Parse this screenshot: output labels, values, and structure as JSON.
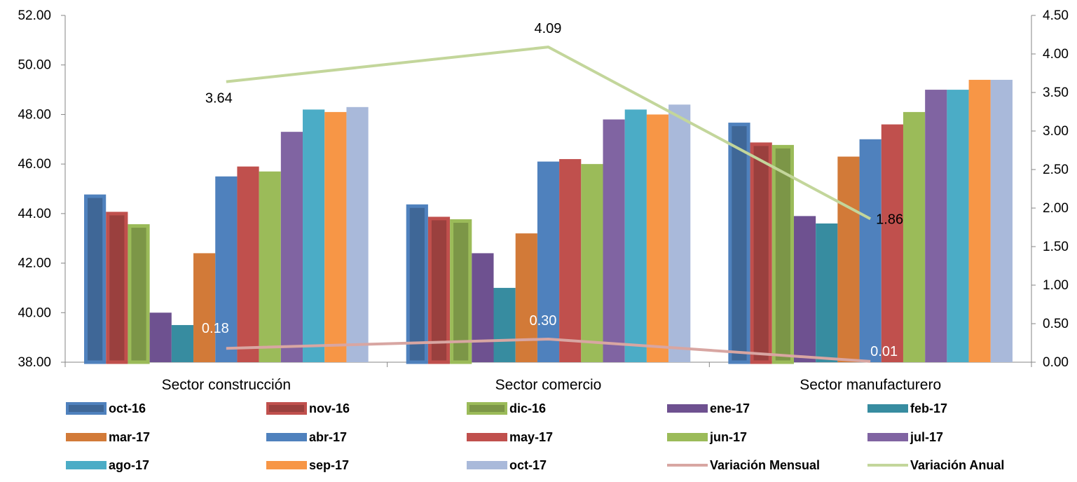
{
  "chart_data": {
    "type": "bar",
    "categories": [
      "Sector construcción",
      "Sector comercio",
      "Sector manufacturero"
    ],
    "ylim": [
      38,
      52
    ],
    "y_ticks": [
      "38.00",
      "40.00",
      "42.00",
      "44.00",
      "46.00",
      "48.00",
      "50.00",
      "52.00"
    ],
    "y2lim": [
      0,
      4.5
    ],
    "y2_ticks": [
      "0.00",
      "0.50",
      "1.00",
      "1.50",
      "2.00",
      "2.50",
      "3.00",
      "3.50",
      "4.00",
      "4.50"
    ],
    "grid": false,
    "legend_position": "bottom",
    "series": [
      {
        "name": "oct-16",
        "color": "#4F81BD",
        "values": [
          44.7,
          44.3,
          47.6
        ],
        "emphasized": true
      },
      {
        "name": "nov-16",
        "color": "#C0504D",
        "values": [
          44.0,
          43.8,
          46.8
        ],
        "emphasized": true
      },
      {
        "name": "dic-16",
        "color": "#9BBB59",
        "values": [
          43.5,
          43.7,
          46.7
        ],
        "emphasized": true
      },
      {
        "name": "ene-17",
        "color": "#6E5190",
        "values": [
          40.0,
          42.4,
          43.9
        ]
      },
      {
        "name": "feb-17",
        "color": "#378CA0",
        "values": [
          39.5,
          41.0,
          43.6
        ]
      },
      {
        "name": "mar-17",
        "color": "#D27A38",
        "values": [
          42.4,
          43.2,
          46.3
        ]
      },
      {
        "name": "abr-17",
        "color": "#4F81BD",
        "values": [
          45.5,
          46.1,
          47.0
        ]
      },
      {
        "name": "may-17",
        "color": "#C0504D",
        "values": [
          45.9,
          46.2,
          47.6
        ]
      },
      {
        "name": "jun-17",
        "color": "#9BBB59",
        "values": [
          45.7,
          46.0,
          48.1
        ]
      },
      {
        "name": "jul-17",
        "color": "#8064A2",
        "values": [
          47.3,
          47.8,
          49.0
        ]
      },
      {
        "name": "ago-17",
        "color": "#4BACC6",
        "values": [
          48.2,
          48.2,
          49.0
        ]
      },
      {
        "name": "sep-17",
        "color": "#F79646",
        "values": [
          48.1,
          48.0,
          49.4
        ]
      },
      {
        "name": "oct-17",
        "color": "#A9B9DA",
        "values": [
          48.3,
          48.4,
          49.4
        ]
      }
    ],
    "lines": [
      {
        "name": "Variación Mensual",
        "color": "#D8A6A2",
        "axis": "right",
        "values": [
          0.18,
          0.3,
          0.01
        ],
        "labels": [
          "0.18",
          "0.30",
          "0.01"
        ],
        "label_color": "#ffffff"
      },
      {
        "name": "Variación Anual",
        "color": "#C3D69B",
        "axis": "right",
        "values": [
          3.64,
          4.09,
          1.86
        ],
        "labels": [
          "3.64",
          "4.09",
          "1.86"
        ],
        "label_color": "#000000"
      }
    ]
  }
}
